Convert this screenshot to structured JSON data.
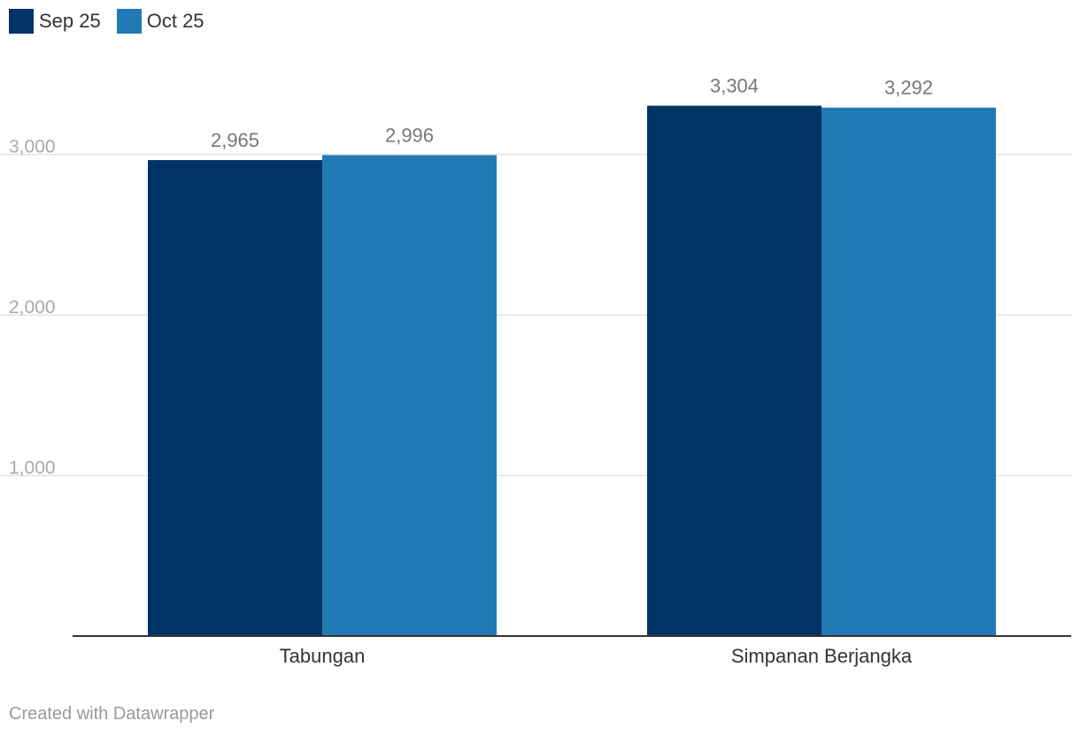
{
  "legend": {
    "items": [
      {
        "label": "Sep 25",
        "color": "#003366"
      },
      {
        "label": "Oct 25",
        "color": "#2179b4"
      }
    ]
  },
  "chart_data": {
    "type": "bar",
    "categories": [
      "Tabungan",
      "Simpanan Berjangka"
    ],
    "series": [
      {
        "name": "Sep 25",
        "values": [
          2965,
          3304
        ],
        "color": "#003366",
        "labels": [
          "2,965",
          "3,304"
        ]
      },
      {
        "name": "Oct 25",
        "values": [
          2996,
          3292
        ],
        "color": "#2179b4",
        "labels": [
          "2,996",
          "3,292"
        ]
      }
    ],
    "yticks": [
      1000,
      2000,
      3000
    ],
    "ytick_labels": [
      "1,000",
      "2,000",
      "3,000"
    ],
    "ylim": [
      0,
      3340
    ],
    "title": "",
    "xlabel": "",
    "ylabel": ""
  },
  "footer": {
    "credit": "Created with Datawrapper"
  }
}
